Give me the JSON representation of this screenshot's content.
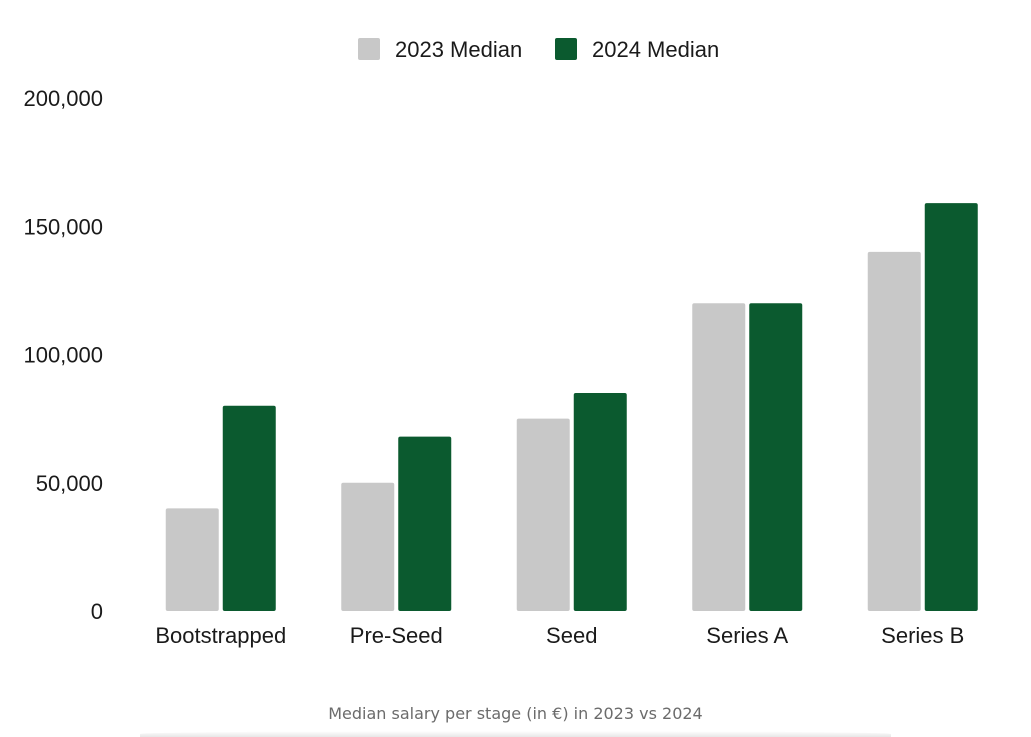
{
  "chart_data": {
    "type": "bar",
    "title": "",
    "xlabel": "",
    "ylabel": "",
    "caption": "Median salary per stage (in €) in 2023 vs 2024",
    "categories": [
      "Bootstrapped",
      "Pre-Seed",
      "Seed",
      "Series A",
      "Series B"
    ],
    "series": [
      {
        "name": "2023 Median",
        "color": "#c8c8c8",
        "values": [
          40000,
          50000,
          75000,
          120000,
          140000
        ]
      },
      {
        "name": "2024 Median",
        "color": "#0b5a2f",
        "values": [
          80000,
          68000,
          85000,
          120000,
          159000
        ]
      }
    ],
    "ylim": [
      0,
      200000
    ],
    "yticks": [
      0,
      50000,
      100000,
      150000,
      200000
    ],
    "ytick_labels": [
      "0",
      "50,000",
      "100,000",
      "150,000",
      "200,000"
    ],
    "grid": false,
    "legend": "top-center"
  }
}
